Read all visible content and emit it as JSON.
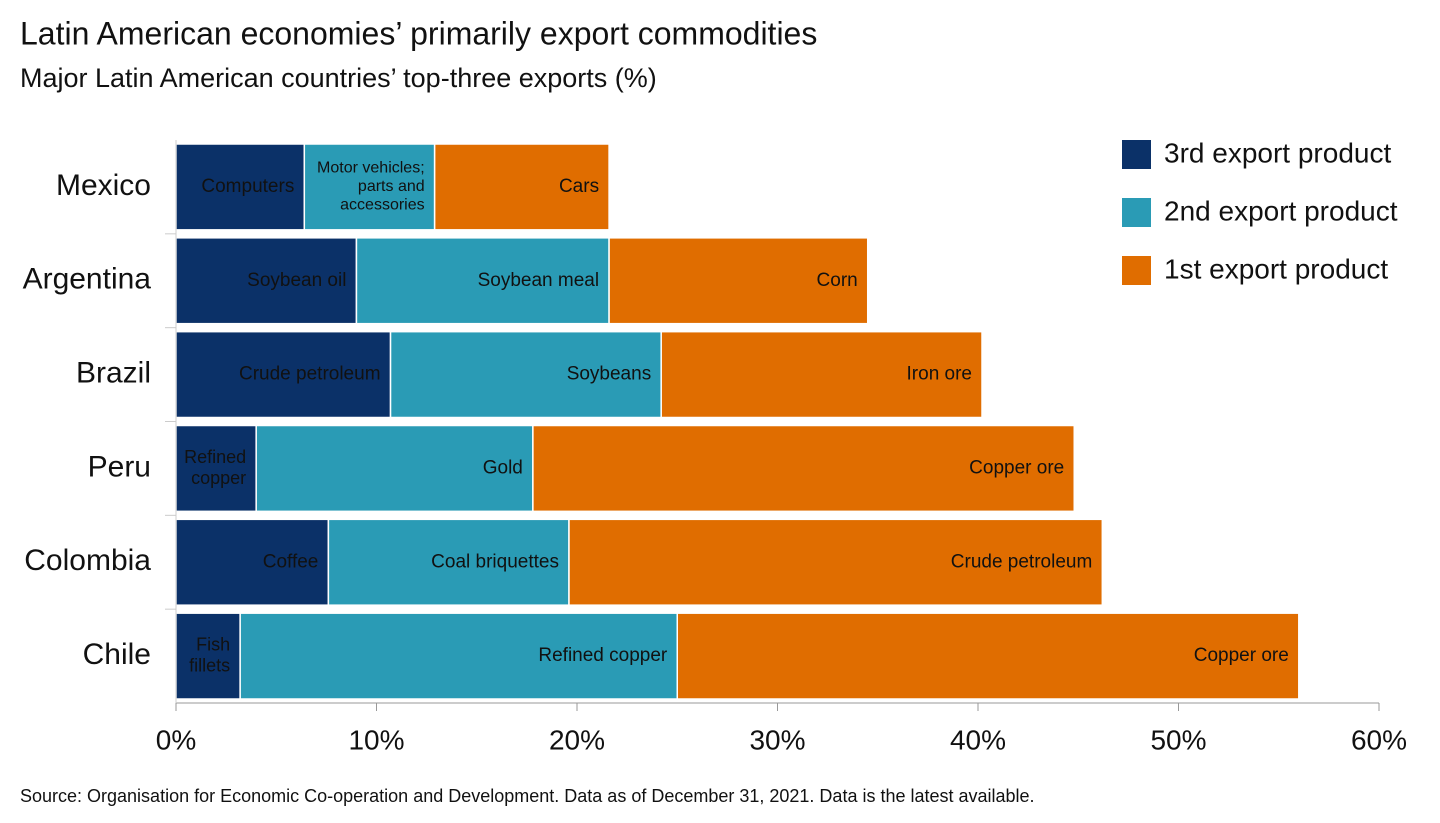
{
  "chart_data": {
    "type": "stacked-barh",
    "title": "Latin American economies’ primarily export commodities",
    "subtitle": "Major Latin American countries’ top-three exports (%)",
    "source": "Source: Organisation for Economic Co-operation and Development. Data as of December 31, 2021. Data is the latest available.",
    "categories": [
      "Mexico",
      "Argentina",
      "Brazil",
      "Peru",
      "Colombia",
      "Chile"
    ],
    "series": [
      {
        "name": "3rd export product",
        "color": "#0b3168",
        "values": [
          6.4,
          9.0,
          10.7,
          4.0,
          7.6,
          3.2
        ],
        "segment_labels": [
          "Computers",
          "Soybean oil",
          "Crude petroleum",
          "Refined\ncopper",
          "Coffee",
          "Fish\nfillets"
        ]
      },
      {
        "name": "2nd export product",
        "color": "#2a9bb5",
        "values": [
          6.5,
          12.6,
          13.5,
          13.8,
          12.0,
          21.8
        ],
        "segment_labels": [
          "Motor vehicles;\nparts and\naccessories",
          "Soybean meal",
          "Soybeans",
          "Gold",
          "Coal briquettes",
          "Refined copper"
        ]
      },
      {
        "name": "1st export product",
        "color": "#e06d00",
        "values": [
          8.7,
          12.9,
          16.0,
          27.0,
          26.6,
          31.0
        ],
        "segment_labels": [
          "Cars",
          "Corn",
          "Iron ore",
          "Copper ore",
          "Crude petroleum",
          "Copper ore"
        ]
      }
    ],
    "xlim": [
      0,
      60
    ],
    "xticks": [
      {
        "value": 0,
        "label": "0%"
      },
      {
        "value": 10,
        "label": "10%"
      },
      {
        "value": 20,
        "label": "20%"
      },
      {
        "value": 30,
        "label": "30%"
      },
      {
        "value": 40,
        "label": "40%"
      },
      {
        "value": 50,
        "label": "50%"
      },
      {
        "value": 60,
        "label": "60%"
      }
    ],
    "legend": "top-right"
  }
}
